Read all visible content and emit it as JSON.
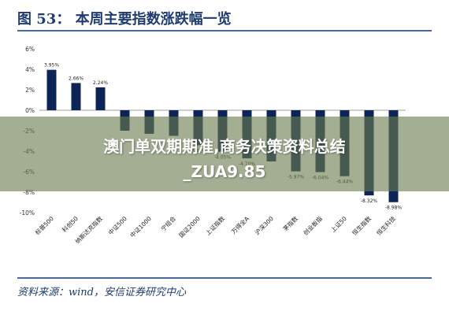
{
  "title": "图 53： 本周主要指数涨跌幅一览",
  "source": "资料来源：wind，安信证券研究中心",
  "overlay": {
    "line1": "澳门单双期期准,商务决策资料总结",
    "line2": "_ZUA9.85"
  },
  "colors": {
    "bar": "#0d2456",
    "accent": "#1f3c6e",
    "overlay": "#6c7c50"
  },
  "chart_data": {
    "type": "bar",
    "title": "",
    "xlabel": "",
    "ylabel": "",
    "ylim": [
      -10,
      6
    ],
    "yticks": [
      6,
      4,
      2,
      0,
      -2,
      -4,
      -6,
      -8,
      -10
    ],
    "ytick_labels": [
      "6%",
      "4%",
      "2%",
      "0%",
      "-2%",
      "-4%",
      "-6%",
      "-8%",
      "-10%"
    ],
    "grid": false,
    "categories": [
      "标普500",
      "科创50",
      "纳斯达克指数",
      "中证500",
      "中证1000",
      "宁组合",
      "国证2000",
      "上证指数",
      "万得全A",
      "沪深300",
      "茅指数",
      "创业板指",
      "上证50",
      "恒生指数",
      "恒生科技"
    ],
    "values": [
      3.95,
      2.66,
      2.24,
      -2.0,
      -2.3,
      -2.5,
      -3.41,
      -4.05,
      -4.7,
      -5.0,
      -5.97,
      -6.04,
      -6.44,
      -8.32,
      -8.98
    ],
    "data_labels": [
      "3.95%",
      "2.66%",
      "2.24%",
      "",
      "",
      "",
      "-3.41%",
      "-4.05%",
      "-4.70%",
      "",
      "-5.97%",
      "-6.04%",
      "-6.44%",
      "-8.32%",
      "-8.98%"
    ]
  }
}
